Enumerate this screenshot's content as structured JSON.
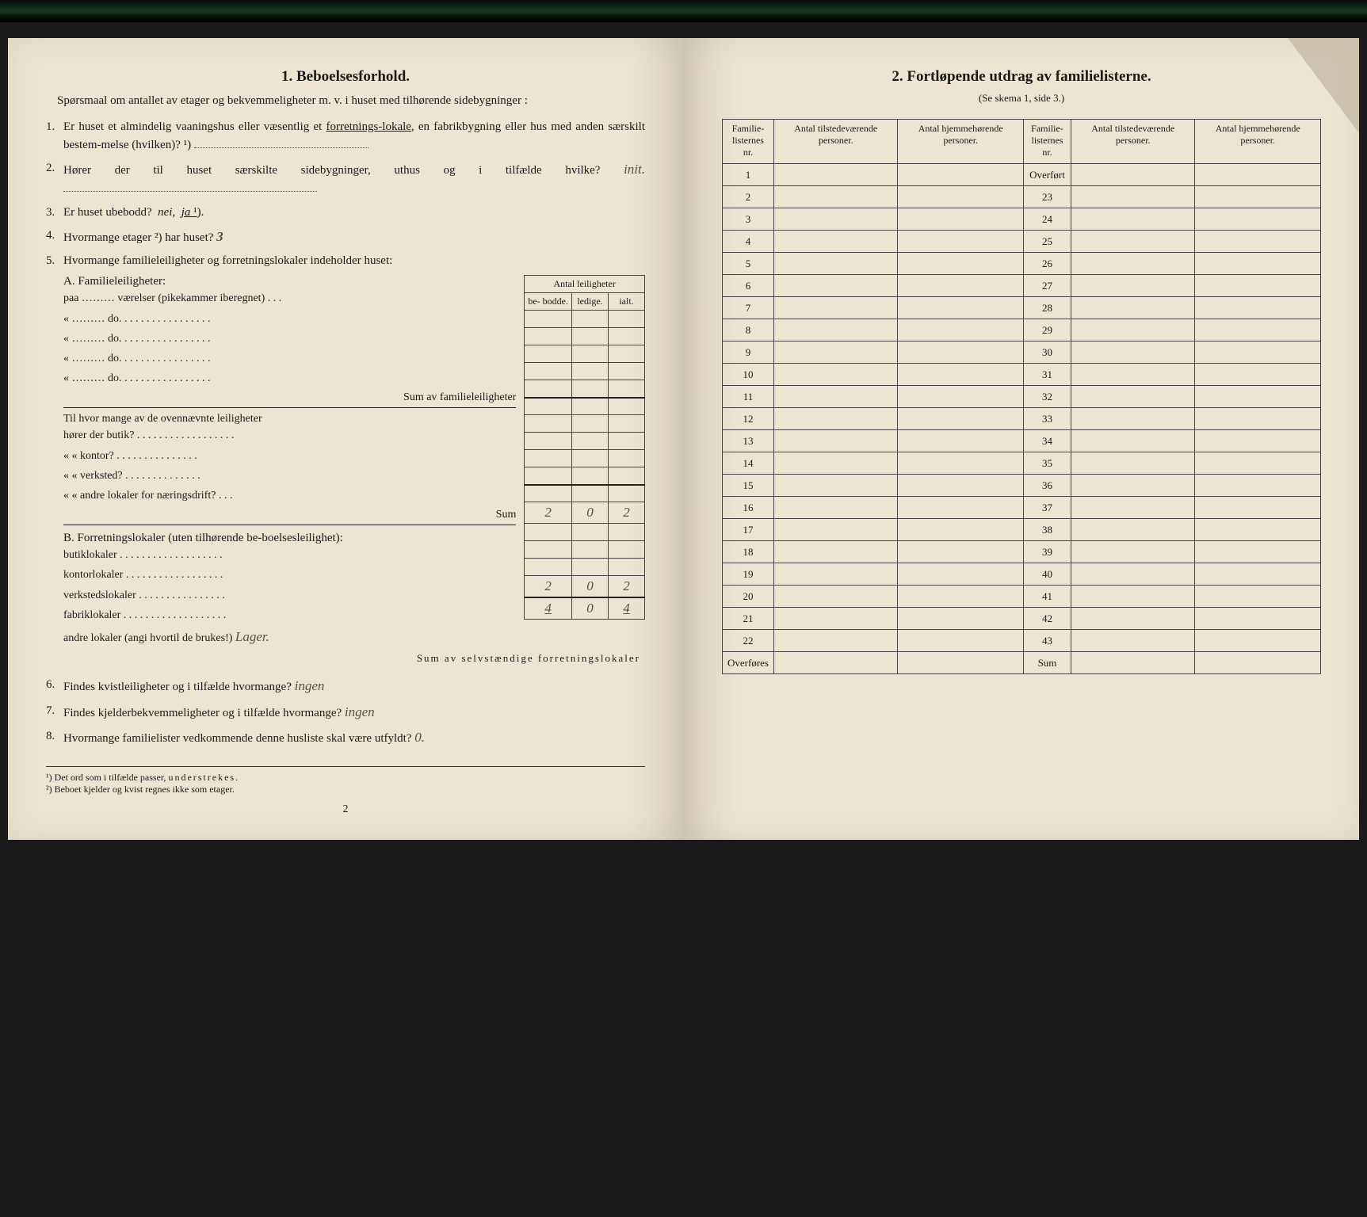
{
  "left": {
    "title": "1.   Beboelsesforhold.",
    "intro": "Spørsmaal om antallet av etager og bekvemmeligheter m. v. i huset med tilhørende sidebygninger :",
    "q1": "Er huset et almindelig vaaningshus eller væsentlig et forretnings-lokale, en fabrikbygning eller hus med anden særskilt bestem-melse (hvilken)? ¹)",
    "q2_pre": "Hører der til huset særskilte sidebygninger, uthus og i tilfælde hvilke?",
    "q2_hand": "init.",
    "q3": "Er huset ubebodd?  nei,  ja ¹).",
    "q4_pre": "Hvormange etager ²) har huset?",
    "q4_hand": "3",
    "q5": "Hvormange familieleiligheter og forretningslokaler indeholder huset:",
    "antal_header": "Antal leiligheter",
    "col_be": "be-\nbodde.",
    "col_ledige": "ledige.",
    "col_ialt": "ialt.",
    "sect_A": "A. Familieleiligheter:",
    "a_rows": [
      "paa ……… værelser (pikekammer iberegnet) . . .",
      "«   ………      do.    . . . . . . . . . . . . . . . .",
      "«   ………      do.    . . . . . . . . . . . . . . . .",
      "«   ………      do.    . . . . . . . . . . . . . . . .",
      "«   ………      do.    . . . . . . . . . . . . . . . ."
    ],
    "a_sum": "Sum av familieleiligheter",
    "a_til": "Til hvor mange av de ovennævnte leiligheter",
    "a_q": [
      "hører der butik? . . . . . . . . . . . . . . . . . .",
      "«      «   kontor?  . . . . . . . . . . . . . . .",
      "«      «   verksted? . . . . . . . . . . . . . .",
      "«      «   andre lokaler for næringsdrift?  . . ."
    ],
    "a_sum2": "Sum",
    "sect_B": "B. Forretningslokaler (uten tilhørende be-boelsesleilighet):",
    "b_rows": [
      {
        "label": "butiklokaler . . . . . . . . . . . . . . . . . . .",
        "v": [
          "2",
          "0",
          "2"
        ]
      },
      {
        "label": "kontorlokaler . . . . . . . . . . . . . . . . . .",
        "v": [
          "",
          "",
          ""
        ]
      },
      {
        "label": "verkstedslokaler . . . . . . . . . . . . . . . .",
        "v": [
          "",
          "",
          ""
        ]
      },
      {
        "label": "fabriklokaler . . . . . . . . . . . . . . . . . . .",
        "v": [
          "",
          "",
          ""
        ]
      },
      {
        "label": "andre lokaler (angi hvortil de brukes!) Lager.",
        "v": [
          "2",
          "0",
          "2"
        ]
      }
    ],
    "b_sum_label": "Sum av selvstændige forretningslokaler",
    "b_sum": [
      "4",
      "0",
      "4"
    ],
    "q6_pre": "Findes kvistleiligheter og i tilfælde hvormange?",
    "q6_hand": "ingen",
    "q7_pre": "Findes kjelderbekvemmeligheter og i tilfælde hvormange?",
    "q7_hand": "ingen",
    "q8_pre": "Hvormange familielister vedkommende denne husliste skal være utfyldt?",
    "q8_hand": "0.",
    "fn1": "¹) Det ord som i tilfælde passer, understrekes.",
    "fn2": "²) Beboet kjelder og kvist regnes ikke som etager.",
    "pagenum": "2"
  },
  "right": {
    "title": "2.   Fortløpende utdrag av familielisterne.",
    "subtitle": "(Se skema 1, side 3.)",
    "cols": [
      "Familie-\nlisternes\nnr.",
      "Antal\ntilstedeværende\npersoner.",
      "Antal\nhjemmehørende\npersoner.",
      "Familie-\nlisternes\nnr.",
      "Antal\ntilstedeværende\npersoner.",
      "Antal\nhjemmehørende\npersoner."
    ],
    "rows_left": [
      "1",
      "2",
      "3",
      "4",
      "5",
      "6",
      "7",
      "8",
      "9",
      "10",
      "11",
      "12",
      "13",
      "14",
      "15",
      "16",
      "17",
      "18",
      "19",
      "20",
      "21",
      "22",
      "Overføres"
    ],
    "rows_right": [
      "Overført",
      "23",
      "24",
      "25",
      "26",
      "27",
      "28",
      "29",
      "30",
      "31",
      "32",
      "33",
      "34",
      "35",
      "36",
      "37",
      "38",
      "39",
      "40",
      "41",
      "42",
      "43",
      "Sum"
    ]
  },
  "colors": {
    "paper": "#ece5d2",
    "ink": "#1a1a1a",
    "hand": "#5a5040"
  }
}
